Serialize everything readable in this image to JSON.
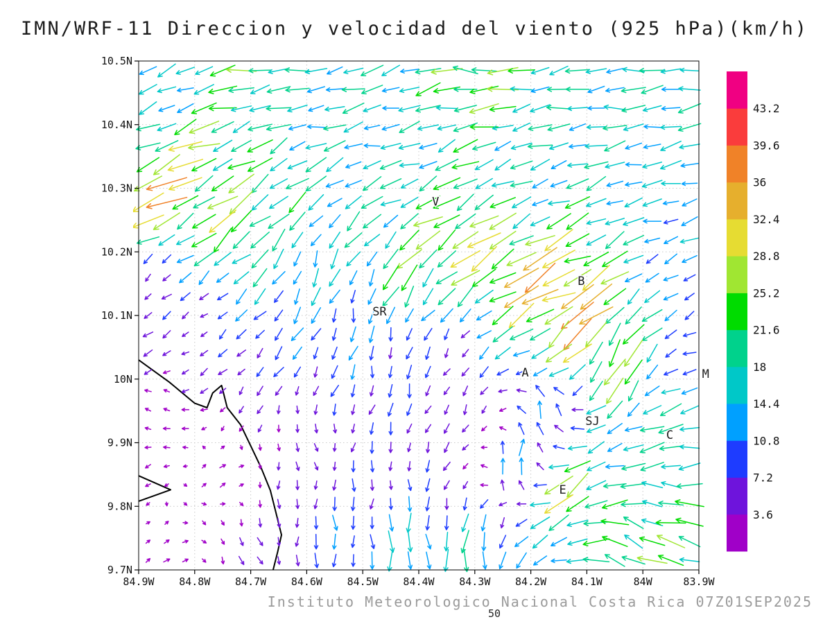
{
  "chart_data": {
    "type": "quiver",
    "title": "IMN/WRF-11 Direccion y velocidad del viento (925 hPa)(km/h)",
    "caption": "Instituto Meteorologico Nacional Costa Rica 07Z01SEP2025",
    "figure_number": "50",
    "x_axis": {
      "range_degW": [
        84.9,
        83.9
      ],
      "ticks": [
        {
          "v": 84.9,
          "label": "84.9W"
        },
        {
          "v": 84.8,
          "label": "84.8W"
        },
        {
          "v": 84.7,
          "label": "84.7W"
        },
        {
          "v": 84.6,
          "label": "84.6W"
        },
        {
          "v": 84.5,
          "label": "84.5W"
        },
        {
          "v": 84.4,
          "label": "84.4W"
        },
        {
          "v": 84.3,
          "label": "84.3W"
        },
        {
          "v": 84.2,
          "label": "84.2W"
        },
        {
          "v": 84.1,
          "label": "84.1W"
        },
        {
          "v": 84.0,
          "label": "84W"
        },
        {
          "v": 83.9,
          "label": "83.9W"
        }
      ]
    },
    "y_axis": {
      "range_degN": [
        9.7,
        10.5
      ],
      "ticks": [
        {
          "v": 10.5,
          "label": "10.5N"
        },
        {
          "v": 10.4,
          "label": "10.4N"
        },
        {
          "v": 10.3,
          "label": "10.3N"
        },
        {
          "v": 10.2,
          "label": "10.2N"
        },
        {
          "v": 10.1,
          "label": "10.1N"
        },
        {
          "v": 10.0,
          "label": "10N"
        },
        {
          "v": 9.9,
          "label": "9.9N"
        },
        {
          "v": 9.8,
          "label": "9.8N"
        },
        {
          "v": 9.7,
          "label": "9.7N"
        }
      ]
    },
    "colorbar": {
      "levels": [
        3.6,
        7.2,
        10.8,
        14.4,
        18,
        21.6,
        25.2,
        28.8,
        32.4,
        36,
        39.6,
        43.2
      ],
      "labels": [
        "3.6",
        "7.2",
        "10.8",
        "14.4",
        "18",
        "21.6",
        "25.2",
        "28.8",
        "32.4",
        "36",
        "39.6",
        "43.2"
      ],
      "colors": [
        "#a000c8",
        "#6e14dc",
        "#1e3cff",
        "#00a0ff",
        "#00c8c8",
        "#00d28c",
        "#00dc00",
        "#a0e632",
        "#e6dc32",
        "#e6af2d",
        "#f08228",
        "#fa3c3c",
        "#f00082"
      ]
    },
    "cities": [
      {
        "label": "V",
        "lonW": 84.37,
        "lat": 10.273
      },
      {
        "label": "B",
        "lonW": 84.11,
        "lat": 10.148
      },
      {
        "label": "SR",
        "lonW": 84.47,
        "lat": 10.1
      },
      {
        "label": "A",
        "lonW": 84.21,
        "lat": 10.004
      },
      {
        "label": "SJ",
        "lonW": 84.09,
        "lat": 9.928
      },
      {
        "label": "C",
        "lonW": 83.952,
        "lat": 9.906
      },
      {
        "label": "E",
        "lonW": 84.143,
        "lat": 9.82
      },
      {
        "label": "M",
        "lonW": 83.888,
        "lat": 10.002
      }
    ],
    "coastlines": [
      [
        [
          84.9,
          10.03
        ],
        [
          84.845,
          9.995
        ],
        [
          84.8,
          9.962
        ],
        [
          84.778,
          9.955
        ],
        [
          84.768,
          9.978
        ],
        [
          84.752,
          9.99
        ],
        [
          84.742,
          9.955
        ],
        [
          84.718,
          9.928
        ],
        [
          84.7,
          9.895
        ],
        [
          84.682,
          9.862
        ],
        [
          84.665,
          9.825
        ],
        [
          84.655,
          9.79
        ],
        [
          84.645,
          9.755
        ],
        [
          84.652,
          9.728
        ],
        [
          84.66,
          9.7
        ]
      ],
      [
        [
          84.9,
          9.848
        ],
        [
          84.843,
          9.826
        ],
        [
          84.9,
          9.808
        ]
      ]
    ],
    "wind_control_points": [
      [
        84.7,
        10.48,
        22,
        185
      ],
      [
        84.3,
        10.48,
        25,
        180
      ],
      [
        83.95,
        10.47,
        18,
        185
      ],
      [
        84.6,
        10.42,
        15,
        185
      ],
      [
        84.1,
        10.42,
        16,
        182
      ],
      [
        83.93,
        10.34,
        15,
        192
      ],
      [
        84.86,
        10.44,
        12,
        205
      ],
      [
        84.86,
        10.3,
        34,
        205
      ],
      [
        84.72,
        10.25,
        27,
        222
      ],
      [
        84.82,
        10.36,
        26,
        200
      ],
      [
        84.65,
        10.32,
        20,
        215
      ],
      [
        84.45,
        10.37,
        14,
        188
      ],
      [
        84.2,
        10.3,
        14,
        200
      ],
      [
        83.98,
        10.28,
        13,
        190
      ],
      [
        84.6,
        10.18,
        14,
        255
      ],
      [
        84.5,
        10.1,
        11,
        265
      ],
      [
        84.45,
        10.02,
        9,
        272
      ],
      [
        84.8,
        10.08,
        4,
        215
      ],
      [
        84.86,
        9.95,
        3,
        150
      ],
      [
        84.75,
        9.85,
        3,
        45
      ],
      [
        84.6,
        9.9,
        4,
        300
      ],
      [
        84.3,
        9.95,
        5,
        255
      ],
      [
        84.45,
        9.85,
        6,
        280
      ],
      [
        84.35,
        10.05,
        5,
        250
      ],
      [
        84.38,
        10.28,
        20,
        205
      ],
      [
        84.33,
        10.22,
        30,
        215
      ],
      [
        84.42,
        10.16,
        24,
        240
      ],
      [
        84.22,
        10.17,
        34,
        210
      ],
      [
        84.14,
        10.13,
        40,
        205
      ],
      [
        84.1,
        10.07,
        33,
        230
      ],
      [
        84.05,
        10.02,
        26,
        250
      ],
      [
        84.17,
        9.95,
        14,
        100
      ],
      [
        84.22,
        9.87,
        16,
        80
      ],
      [
        84.13,
        9.82,
        30,
        215
      ],
      [
        83.93,
        9.9,
        20,
        190
      ],
      [
        83.95,
        9.78,
        22,
        165
      ],
      [
        84.02,
        9.73,
        24,
        150
      ],
      [
        84.42,
        9.73,
        17,
        280
      ],
      [
        84.3,
        9.72,
        18,
        268
      ],
      [
        83.93,
        10.15,
        8,
        212
      ],
      [
        83.9,
        10.02,
        7,
        190
      ],
      [
        84.88,
        10.15,
        5,
        230
      ],
      [
        84.55,
        9.75,
        10,
        270
      ],
      [
        84.7,
        9.72,
        5,
        300
      ],
      [
        84.85,
        9.72,
        3,
        40
      ]
    ],
    "grid": {
      "nx": 30,
      "ny": 27
    }
  }
}
